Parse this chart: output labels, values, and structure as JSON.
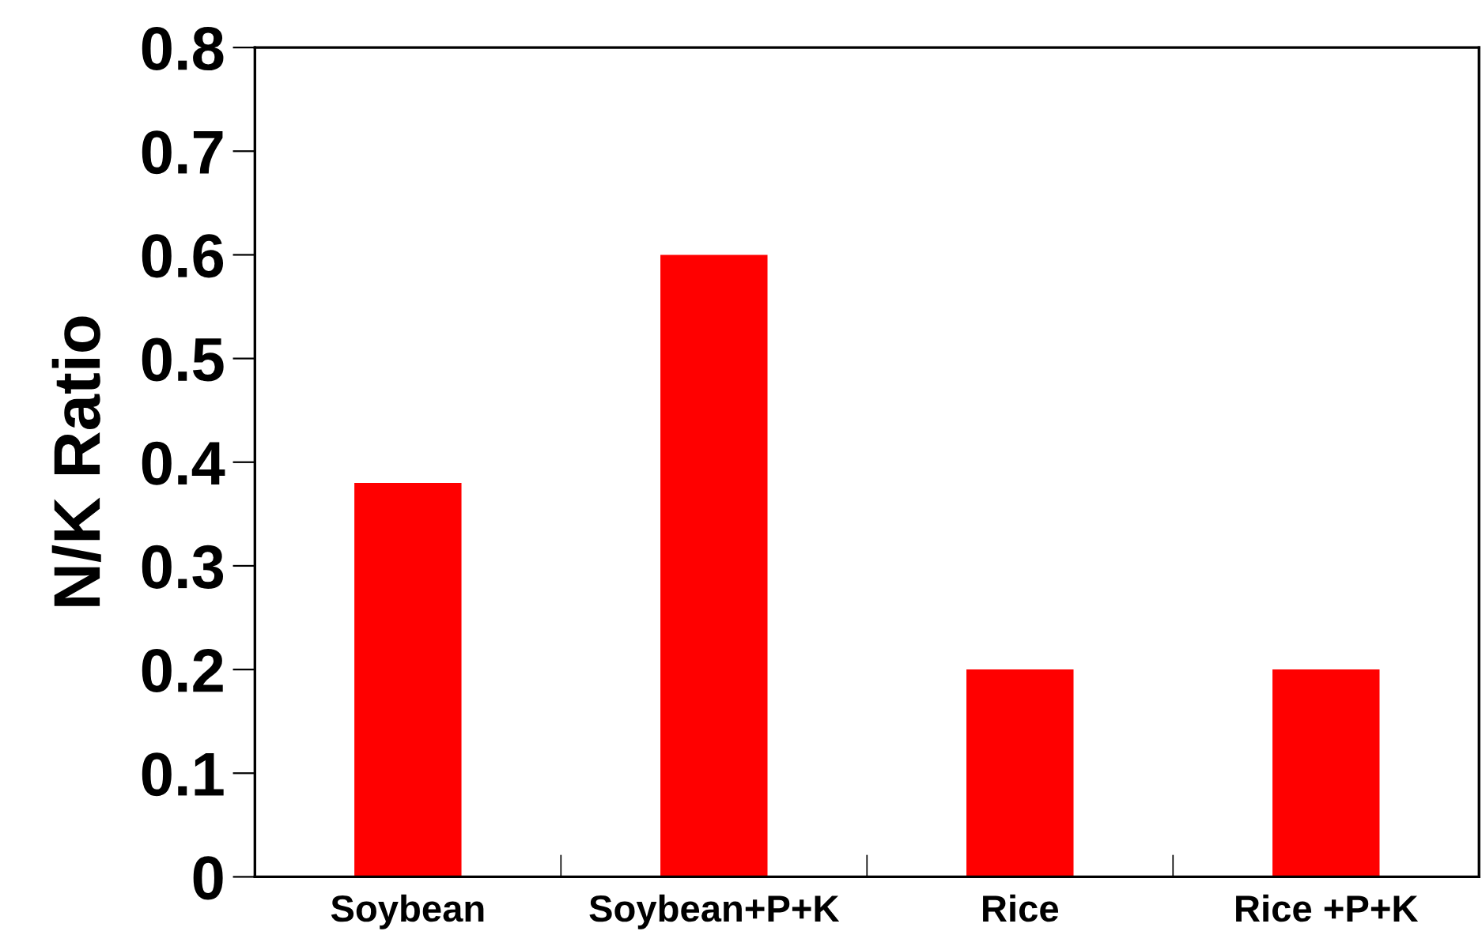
{
  "chart_data": {
    "type": "bar",
    "ylabel": "N/K Ratio",
    "categories": [
      "Soybean",
      "Soybean+P+K",
      "Rice",
      "Rice +P+K"
    ],
    "values": [
      0.38,
      0.6,
      0.2,
      0.2
    ],
    "color": "#ff0000",
    "ylim": [
      0,
      0.8
    ],
    "yticks": [
      {
        "value": 0,
        "label": "0"
      },
      0.1,
      0.2,
      0.3,
      0.4,
      0.5,
      0.6,
      0.7,
      0.8
    ],
    "grid": false,
    "legend": false
  }
}
